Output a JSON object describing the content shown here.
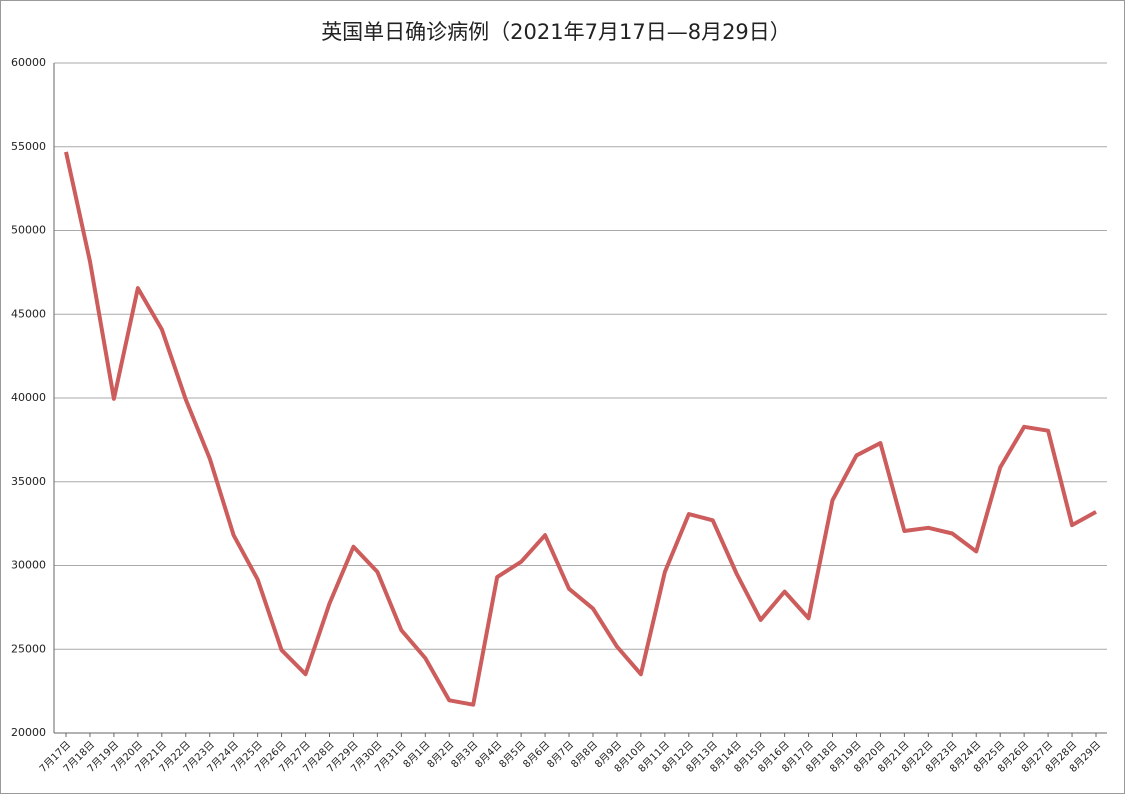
{
  "chart_data": {
    "type": "line",
    "title": "英国单日确诊病例（2021年7月17日—8月29日）",
    "categories": [
      "7月17日",
      "7月18日",
      "7月19日",
      "7月20日",
      "7月21日",
      "7月22日",
      "7月23日",
      "7月24日",
      "7月25日",
      "7月26日",
      "7月27日",
      "7月28日",
      "7月29日",
      "7月30日",
      "7月31日",
      "8月1日",
      "8月2日",
      "8月3日",
      "8月4日",
      "8月5日",
      "8月6日",
      "8月7日",
      "8月8日",
      "8月9日",
      "8月10日",
      "8月11日",
      "8月12日",
      "8月13日",
      "8月14日",
      "8月15日",
      "8月16日",
      "8月17日",
      "8月18日",
      "8月19日",
      "8月20日",
      "8月21日",
      "8月22日",
      "8月23日",
      "8月24日",
      "8月25日",
      "8月26日",
      "8月27日",
      "8月28日",
      "8月29日"
    ],
    "series": [
      {
        "name": "确诊病例",
        "color": "#cd5c5c",
        "values": [
          54690,
          48160,
          39950,
          46560,
          44100,
          39910,
          36390,
          31800,
          29170,
          24950,
          23510,
          27730,
          31120,
          29620,
          26140,
          24470,
          21950,
          21690,
          29310,
          30220,
          31810,
          28610,
          27430,
          25160,
          23510,
          29610,
          33070,
          32700,
          29500,
          26750,
          28440,
          26850,
          33900,
          36570,
          37310,
          32060,
          32250,
          31910,
          30840,
          35850,
          38280,
          38050,
          32410,
          33200
        ]
      }
    ],
    "ylim": [
      20000,
      60000
    ],
    "yticks": [
      20000,
      25000,
      30000,
      35000,
      40000,
      45000,
      50000,
      55000,
      60000
    ],
    "grid": true
  }
}
